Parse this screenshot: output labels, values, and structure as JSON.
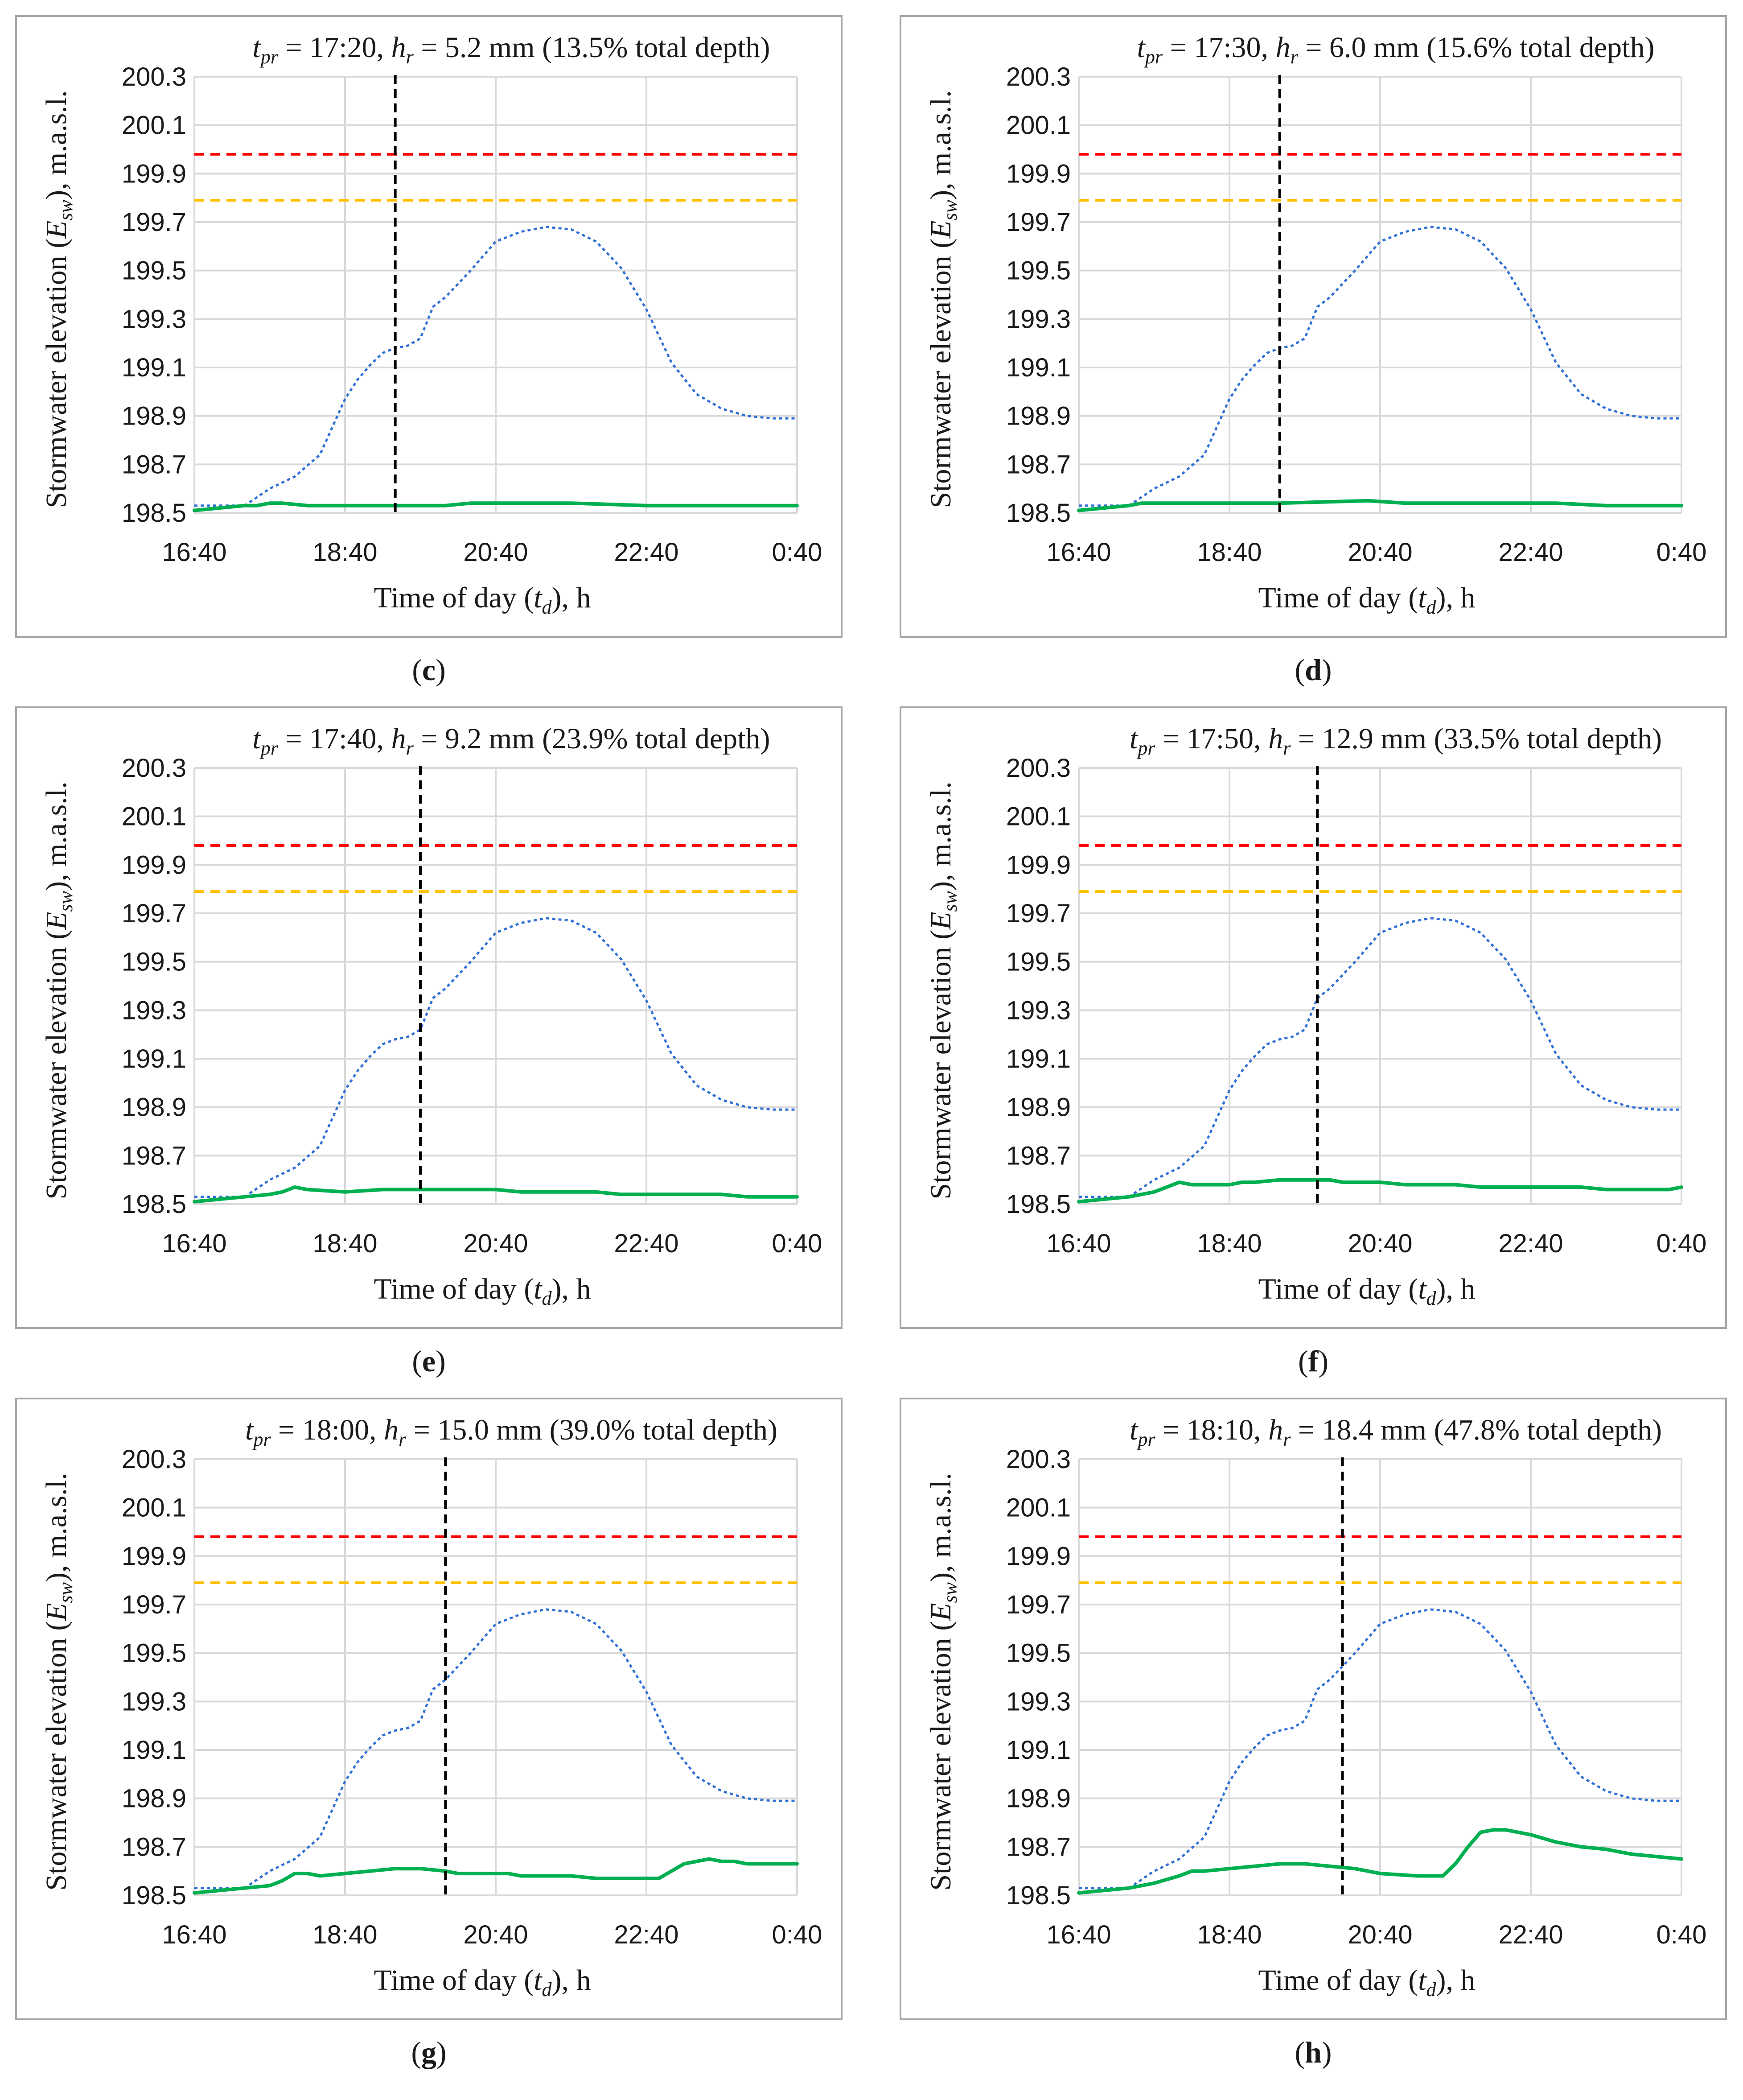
{
  "colors": {
    "observed": "#2f6fd6",
    "simulated": "#00b050",
    "red_threshold": "#ff0000",
    "orange_threshold": "#ffc000",
    "prediction_time": "#000000",
    "grid": "#d9d9d9"
  },
  "chart_data": [
    {
      "type": "line",
      "panel": "c",
      "title": {
        "tpr": "17:20",
        "hr": "5.2",
        "depth_pct": "13.5"
      },
      "xlabel": "Time of day (td), h",
      "ylabel": "Stormwater elevation (Esw), m.a.s.l.",
      "x_ticks": [
        "16:40",
        "18:40",
        "20:40",
        "22:40",
        "0:40"
      ],
      "x_range_minutes": [
        0,
        480
      ],
      "y_ticks": [
        "198.5",
        "198.7",
        "198.9",
        "199.1",
        "199.3",
        "199.5",
        "199.7",
        "199.9",
        "200.1",
        "200.3"
      ],
      "ylim": [
        198.5,
        200.3
      ],
      "thresholds": {
        "red": 199.98,
        "orange": 199.79
      },
      "prediction_minute": 160,
      "series": [
        {
          "name": "observed",
          "style": "dotted",
          "x": [
            0,
            20,
            40,
            60,
            80,
            100,
            120,
            130,
            140,
            150,
            160,
            170,
            180,
            190,
            200,
            220,
            240,
            260,
            280,
            300,
            320,
            340,
            360,
            380,
            400,
            420,
            440,
            460,
            480
          ],
          "y": [
            198.53,
            198.53,
            198.53,
            198.6,
            198.65,
            198.74,
            198.97,
            199.05,
            199.11,
            199.16,
            199.18,
            199.19,
            199.22,
            199.35,
            199.39,
            199.5,
            199.62,
            199.66,
            199.68,
            199.67,
            199.62,
            199.51,
            199.34,
            199.12,
            198.99,
            198.93,
            198.9,
            198.89,
            198.89
          ]
        },
        {
          "name": "simulated",
          "style": "solid",
          "x": [
            0,
            20,
            40,
            50,
            60,
            70,
            90,
            110,
            200,
            220,
            300,
            360,
            480
          ],
          "y": [
            198.51,
            198.52,
            198.53,
            198.53,
            198.54,
            198.54,
            198.53,
            198.53,
            198.53,
            198.54,
            198.54,
            198.53,
            198.53
          ]
        }
      ]
    },
    {
      "type": "line",
      "panel": "d",
      "title": {
        "tpr": "17:30",
        "hr": "6.0",
        "depth_pct": "15.6"
      },
      "xlabel": "Time of day (td), h",
      "ylabel": "Stormwater elevation (Esw), m.a.s.l.",
      "x_ticks": [
        "16:40",
        "18:40",
        "20:40",
        "22:40",
        "0:40"
      ],
      "x_range_minutes": [
        0,
        480
      ],
      "y_ticks": [
        "198.5",
        "198.7",
        "198.9",
        "199.1",
        "199.3",
        "199.5",
        "199.7",
        "199.9",
        "200.1",
        "200.3"
      ],
      "ylim": [
        198.5,
        200.3
      ],
      "thresholds": {
        "red": 199.98,
        "orange": 199.79
      },
      "prediction_minute": 160,
      "series": [
        {
          "name": "observed",
          "style": "dotted",
          "x": [
            0,
            20,
            40,
            60,
            80,
            100,
            120,
            130,
            140,
            150,
            160,
            170,
            180,
            190,
            200,
            220,
            240,
            260,
            280,
            300,
            320,
            340,
            360,
            380,
            400,
            420,
            440,
            460,
            480
          ],
          "y": [
            198.53,
            198.53,
            198.53,
            198.6,
            198.65,
            198.74,
            198.97,
            199.05,
            199.11,
            199.16,
            199.18,
            199.19,
            199.22,
            199.35,
            199.39,
            199.5,
            199.62,
            199.66,
            199.68,
            199.67,
            199.62,
            199.51,
            199.34,
            199.12,
            198.99,
            198.93,
            198.9,
            198.89,
            198.89
          ]
        },
        {
          "name": "simulated",
          "style": "solid",
          "x": [
            0,
            20,
            40,
            50,
            60,
            90,
            160,
            230,
            260,
            380,
            420,
            480
          ],
          "y": [
            198.51,
            198.52,
            198.53,
            198.54,
            198.54,
            198.54,
            198.54,
            198.55,
            198.54,
            198.54,
            198.53,
            198.53
          ]
        }
      ]
    },
    {
      "type": "line",
      "panel": "e",
      "title": {
        "tpr": "17:40",
        "hr": "9.2",
        "depth_pct": "23.9"
      },
      "xlabel": "Time of day (td), h",
      "ylabel": "Stormwater elevation (Esw), m.a.s.l.",
      "x_ticks": [
        "16:40",
        "18:40",
        "20:40",
        "22:40",
        "0:40"
      ],
      "x_range_minutes": [
        0,
        480
      ],
      "y_ticks": [
        "198.5",
        "198.7",
        "198.9",
        "199.1",
        "199.3",
        "199.5",
        "199.7",
        "199.9",
        "200.1",
        "200.3"
      ],
      "ylim": [
        198.5,
        200.3
      ],
      "thresholds": {
        "red": 199.98,
        "orange": 199.79
      },
      "prediction_minute": 180,
      "series": [
        {
          "name": "observed",
          "style": "dotted",
          "x": [
            0,
            20,
            40,
            60,
            80,
            100,
            120,
            130,
            140,
            150,
            160,
            170,
            180,
            190,
            200,
            220,
            240,
            260,
            280,
            300,
            320,
            340,
            360,
            380,
            400,
            420,
            440,
            460,
            480
          ],
          "y": [
            198.53,
            198.53,
            198.53,
            198.6,
            198.65,
            198.74,
            198.97,
            199.05,
            199.11,
            199.16,
            199.18,
            199.19,
            199.22,
            199.35,
            199.39,
            199.5,
            199.62,
            199.66,
            199.68,
            199.67,
            199.62,
            199.51,
            199.34,
            199.12,
            198.99,
            198.93,
            198.9,
            198.89,
            198.89
          ]
        },
        {
          "name": "simulated",
          "style": "solid",
          "x": [
            0,
            20,
            40,
            60,
            70,
            80,
            90,
            120,
            150,
            190,
            240,
            260,
            320,
            340,
            420,
            440,
            480
          ],
          "y": [
            198.51,
            198.52,
            198.53,
            198.54,
            198.55,
            198.57,
            198.56,
            198.55,
            198.56,
            198.56,
            198.56,
            198.55,
            198.55,
            198.54,
            198.54,
            198.53,
            198.53
          ]
        }
      ]
    },
    {
      "type": "line",
      "panel": "f",
      "title": {
        "tpr": "17:50",
        "hr": "12.9",
        "depth_pct": "33.5"
      },
      "xlabel": "Time of day (td), h",
      "ylabel": "Stormwater elevation (Esw), m.a.s.l.",
      "x_ticks": [
        "16:40",
        "18:40",
        "20:40",
        "22:40",
        "0:40"
      ],
      "x_range_minutes": [
        0,
        480
      ],
      "y_ticks": [
        "198.5",
        "198.7",
        "198.9",
        "199.1",
        "199.3",
        "199.5",
        "199.7",
        "199.9",
        "200.1",
        "200.3"
      ],
      "ylim": [
        198.5,
        200.3
      ],
      "thresholds": {
        "red": 199.98,
        "orange": 199.79
      },
      "prediction_minute": 190,
      "series": [
        {
          "name": "observed",
          "style": "dotted",
          "x": [
            0,
            20,
            40,
            60,
            80,
            100,
            120,
            130,
            140,
            150,
            160,
            170,
            180,
            190,
            200,
            220,
            240,
            260,
            280,
            300,
            320,
            340,
            360,
            380,
            400,
            420,
            440,
            460,
            480
          ],
          "y": [
            198.53,
            198.53,
            198.53,
            198.6,
            198.65,
            198.74,
            198.97,
            199.05,
            199.11,
            199.16,
            199.18,
            199.19,
            199.22,
            199.35,
            199.39,
            199.5,
            199.62,
            199.66,
            199.68,
            199.67,
            199.62,
            199.51,
            199.34,
            199.12,
            198.99,
            198.93,
            198.9,
            198.89,
            198.89
          ]
        },
        {
          "name": "simulated",
          "style": "solid",
          "x": [
            0,
            20,
            40,
            60,
            70,
            80,
            90,
            120,
            130,
            140,
            160,
            200,
            210,
            240,
            260,
            300,
            320,
            400,
            420,
            470,
            480
          ],
          "y": [
            198.51,
            198.52,
            198.53,
            198.55,
            198.57,
            198.59,
            198.58,
            198.58,
            198.59,
            198.59,
            198.6,
            198.6,
            198.59,
            198.59,
            198.58,
            198.58,
            198.57,
            198.57,
            198.56,
            198.56,
            198.57
          ]
        }
      ]
    },
    {
      "type": "line",
      "panel": "g",
      "title": {
        "tpr": "18:00",
        "hr": "15.0",
        "depth_pct": "39.0"
      },
      "xlabel": "Time of day (td), h",
      "ylabel": "Stormwater elevation (Esw), m.a.s.l.",
      "x_ticks": [
        "16:40",
        "18:40",
        "20:40",
        "22:40",
        "0:40"
      ],
      "x_range_minutes": [
        0,
        480
      ],
      "y_ticks": [
        "198.5",
        "198.7",
        "198.9",
        "199.1",
        "199.3",
        "199.5",
        "199.7",
        "199.9",
        "200.1",
        "200.3"
      ],
      "ylim": [
        198.5,
        200.3
      ],
      "thresholds": {
        "red": 199.98,
        "orange": 199.79
      },
      "prediction_minute": 200,
      "series": [
        {
          "name": "observed",
          "style": "dotted",
          "x": [
            0,
            20,
            40,
            60,
            80,
            100,
            120,
            130,
            140,
            150,
            160,
            170,
            180,
            190,
            200,
            220,
            240,
            260,
            280,
            300,
            320,
            340,
            360,
            380,
            400,
            420,
            440,
            460,
            480
          ],
          "y": [
            198.53,
            198.53,
            198.53,
            198.6,
            198.65,
            198.74,
            198.97,
            199.05,
            199.11,
            199.16,
            199.18,
            199.19,
            199.22,
            199.35,
            199.39,
            199.5,
            199.62,
            199.66,
            199.68,
            199.67,
            199.62,
            199.51,
            199.34,
            199.12,
            198.99,
            198.93,
            198.9,
            198.89,
            198.89
          ]
        },
        {
          "name": "simulated",
          "style": "solid",
          "x": [
            0,
            20,
            40,
            60,
            70,
            80,
            90,
            100,
            120,
            140,
            160,
            180,
            200,
            210,
            250,
            260,
            300,
            320,
            370,
            380,
            390,
            400,
            410,
            420,
            430,
            440,
            460,
            480
          ],
          "y": [
            198.51,
            198.52,
            198.53,
            198.54,
            198.56,
            198.59,
            198.59,
            198.58,
            198.59,
            198.6,
            198.61,
            198.61,
            198.6,
            198.59,
            198.59,
            198.58,
            198.58,
            198.57,
            198.57,
            198.6,
            198.63,
            198.64,
            198.65,
            198.64,
            198.64,
            198.63,
            198.63,
            198.63
          ]
        }
      ]
    },
    {
      "type": "line",
      "panel": "h",
      "title": {
        "tpr": "18:10",
        "hr": "18.4",
        "depth_pct": "47.8"
      },
      "xlabel": "Time of day (td), h",
      "ylabel": "Stormwater elevation (Esw), m.a.s.l.",
      "x_ticks": [
        "16:40",
        "18:40",
        "20:40",
        "22:40",
        "0:40"
      ],
      "x_range_minutes": [
        0,
        480
      ],
      "y_ticks": [
        "198.5",
        "198.7",
        "198.9",
        "199.1",
        "199.3",
        "199.5",
        "199.7",
        "199.9",
        "200.1",
        "200.3"
      ],
      "ylim": [
        198.5,
        200.3
      ],
      "thresholds": {
        "red": 199.98,
        "orange": 199.79
      },
      "prediction_minute": 210,
      "series": [
        {
          "name": "observed",
          "style": "dotted",
          "x": [
            0,
            20,
            40,
            60,
            80,
            100,
            120,
            130,
            140,
            150,
            160,
            170,
            180,
            190,
            200,
            220,
            240,
            260,
            280,
            300,
            320,
            340,
            360,
            380,
            400,
            420,
            440,
            460,
            480
          ],
          "y": [
            198.53,
            198.53,
            198.53,
            198.6,
            198.65,
            198.74,
            198.97,
            199.05,
            199.11,
            199.16,
            199.18,
            199.19,
            199.22,
            199.35,
            199.39,
            199.5,
            199.62,
            199.66,
            199.68,
            199.67,
            199.62,
            199.51,
            199.34,
            199.12,
            198.99,
            198.93,
            198.9,
            198.89,
            198.89
          ]
        },
        {
          "name": "simulated",
          "style": "solid",
          "x": [
            0,
            20,
            40,
            60,
            80,
            90,
            100,
            120,
            140,
            160,
            180,
            200,
            220,
            240,
            270,
            290,
            300,
            310,
            320,
            330,
            340,
            360,
            380,
            400,
            420,
            440,
            460,
            480
          ],
          "y": [
            198.51,
            198.52,
            198.53,
            198.55,
            198.58,
            198.6,
            198.6,
            198.61,
            198.62,
            198.63,
            198.63,
            198.62,
            198.61,
            198.59,
            198.58,
            198.58,
            198.63,
            198.7,
            198.76,
            198.77,
            198.77,
            198.75,
            198.72,
            198.7,
            198.69,
            198.67,
            198.66,
            198.65
          ]
        }
      ]
    }
  ]
}
